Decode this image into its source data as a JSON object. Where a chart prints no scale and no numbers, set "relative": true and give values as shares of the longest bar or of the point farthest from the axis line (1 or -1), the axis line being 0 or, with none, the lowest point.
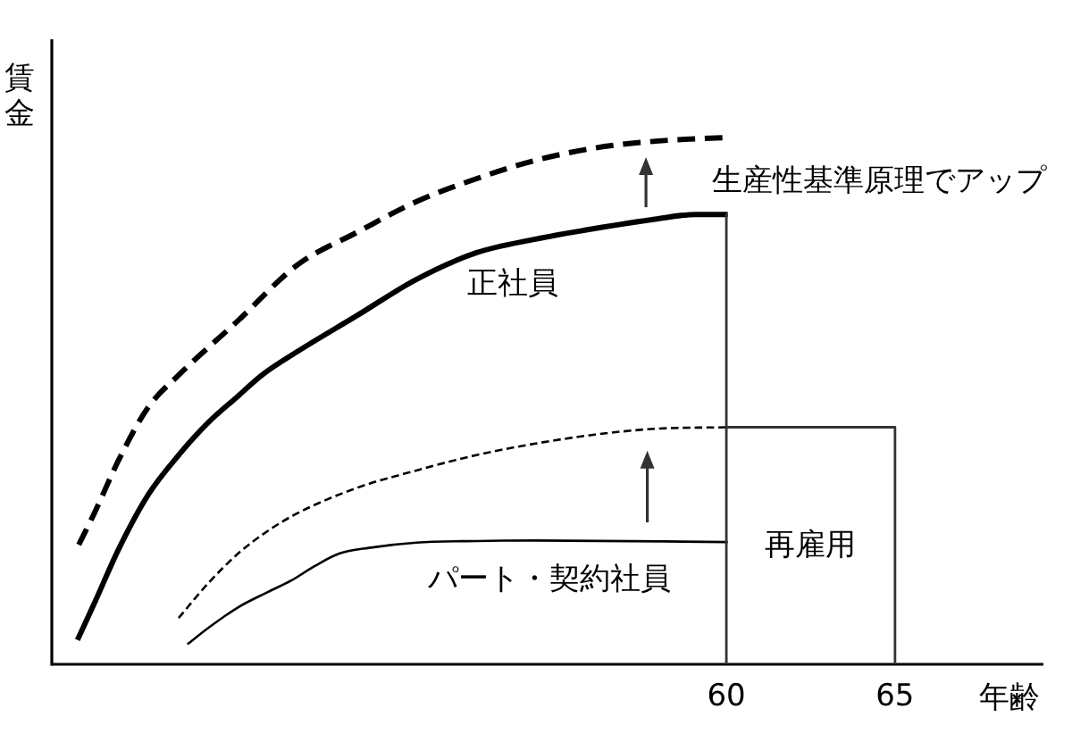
{
  "chart_data": {
    "type": "line",
    "relative": true,
    "ylabel": "賃金",
    "xlabel": "年齢",
    "xlim": [
      40,
      69.4
    ],
    "xticks": [
      60,
      65
    ],
    "annotations": [
      "生産性基準原理でアップ"
    ],
    "series": [
      {
        "color": "#000000",
        "line_style": "dashed",
        "x": [
          40.8,
          41.27,
          42.0,
          42.86,
          43.76,
          45.5,
          47.3,
          49.05,
          50.8,
          52.6,
          54.3,
          56.1,
          57.9,
          60.0
        ],
        "values": [
          0.227,
          0.288,
          0.39,
          0.488,
          0.549,
          0.651,
          0.759,
          0.82,
          0.878,
          0.922,
          0.956,
          0.98,
          0.993,
          1.0
        ]
      },
      {
        "name": "正社員",
        "color": "#000000",
        "line_style": "solid",
        "x": [
          40.76,
          41.29,
          42.0,
          42.87,
          43.76,
          44.64,
          45.52,
          46.23,
          47.29,
          49.05,
          50.79,
          52.58,
          54.34,
          56.08,
          57.88,
          59.1,
          60.04
        ],
        "values": [
          0.046,
          0.12,
          0.221,
          0.323,
          0.397,
          0.459,
          0.509,
          0.549,
          0.594,
          0.662,
          0.73,
          0.781,
          0.807,
          0.827,
          0.845,
          0.854,
          0.854
        ]
      },
      {
        "color": "#000000",
        "line_style": "dashed",
        "x": [
          43.76,
          44.64,
          45.52,
          46.4,
          47.29,
          49.05,
          50.81,
          52.58,
          54.34,
          56.1,
          57.87,
          60.04
        ],
        "values": [
          0.088,
          0.154,
          0.21,
          0.253,
          0.287,
          0.335,
          0.368,
          0.397,
          0.419,
          0.436,
          0.447,
          0.45
        ]
      },
      {
        "name": "パート・契約社員",
        "color": "#000000",
        "line_style": "solid",
        "x": [
          44.02,
          44.64,
          45.52,
          46.4,
          47.1,
          47.81,
          48.52,
          49.4,
          50.81,
          52.58,
          54.34,
          60.04
        ],
        "values": [
          0.038,
          0.069,
          0.108,
          0.137,
          0.159,
          0.187,
          0.21,
          0.221,
          0.231,
          0.234,
          0.235,
          0.232
        ]
      },
      {
        "name": "再雇用",
        "color": "#333333",
        "line_style": "solid",
        "x": [
          60,
          60,
          60,
          65,
          65
        ],
        "values": [
          0,
          0.854,
          0.45,
          0.45,
          0
        ]
      }
    ]
  }
}
